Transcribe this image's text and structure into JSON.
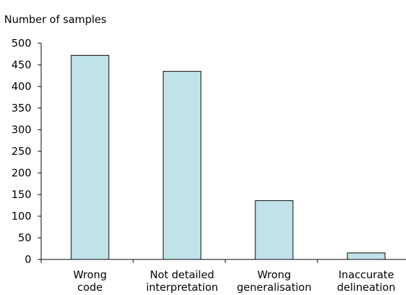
{
  "chart_data": {
    "type": "bar",
    "title": "",
    "xlabel": "",
    "ylabel": "Number of samples",
    "categories": [
      [
        "Wrong",
        "code"
      ],
      [
        "Not detailed",
        "interpretation"
      ],
      [
        "Wrong",
        "generalisation"
      ],
      [
        "Inaccurate",
        "delineation"
      ]
    ],
    "values": [
      472,
      435,
      136,
      15
    ],
    "ylim": [
      0,
      500
    ],
    "yticks": [
      0,
      50,
      100,
      150,
      200,
      250,
      300,
      350,
      400,
      450,
      500
    ],
    "grid": false,
    "legend": "none",
    "colors": {
      "bar_fill": "#bfe3e9",
      "bar_stroke": "#000000",
      "axis": "#000000"
    }
  }
}
